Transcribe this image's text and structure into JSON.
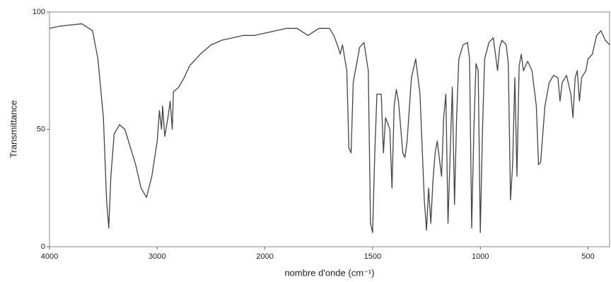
{
  "chart_data": {
    "type": "line",
    "y_label": "Transmittance",
    "x_label": "nombre d'onde (cm⁻¹)",
    "color": "#444444",
    "xlim": [
      4000,
      400
    ],
    "xticks": [
      4000,
      3000,
      2000,
      1500,
      1000,
      500
    ],
    "x_scale_break": 2000,
    "ylim": [
      0,
      100
    ],
    "yticks": [
      0,
      50,
      100
    ],
    "x": [
      4000,
      3900,
      3700,
      3600,
      3550,
      3500,
      3470,
      3450,
      3430,
      3400,
      3350,
      3300,
      3200,
      3150,
      3100,
      3050,
      3000,
      2980,
      2960,
      2950,
      2930,
      2900,
      2880,
      2860,
      2850,
      2800,
      2750,
      2700,
      2600,
      2500,
      2400,
      2300,
      2200,
      2100,
      2000,
      1950,
      1900,
      1850,
      1800,
      1750,
      1700,
      1680,
      1660,
      1650,
      1640,
      1620,
      1610,
      1600,
      1590,
      1560,
      1540,
      1520,
      1510,
      1500,
      1490,
      1480,
      1460,
      1450,
      1440,
      1420,
      1410,
      1400,
      1390,
      1380,
      1360,
      1350,
      1340,
      1320,
      1300,
      1280,
      1260,
      1250,
      1240,
      1230,
      1220,
      1210,
      1200,
      1180,
      1170,
      1160,
      1150,
      1140,
      1130,
      1120,
      1110,
      1100,
      1080,
      1060,
      1050,
      1040,
      1030,
      1020,
      1010,
      1000,
      990,
      980,
      960,
      940,
      930,
      920,
      910,
      900,
      880,
      870,
      860,
      850,
      840,
      830,
      820,
      810,
      800,
      780,
      760,
      740,
      730,
      720,
      700,
      680,
      660,
      640,
      630,
      620,
      600,
      580,
      570,
      560,
      550,
      540,
      530,
      510,
      500,
      480,
      460,
      440,
      420,
      400
    ],
    "values": [
      93,
      94,
      95,
      92,
      80,
      55,
      20,
      8,
      30,
      48,
      52,
      50,
      35,
      25,
      21,
      30,
      45,
      58,
      50,
      60,
      47,
      55,
      62,
      50,
      66,
      68,
      72,
      77,
      82,
      86,
      88,
      89,
      90,
      90,
      91,
      92,
      93,
      93,
      90,
      93,
      93,
      90,
      85,
      82,
      86,
      75,
      42,
      40,
      70,
      85,
      87,
      75,
      10,
      6,
      40,
      65,
      65,
      40,
      55,
      50,
      25,
      60,
      67,
      62,
      40,
      38,
      45,
      72,
      80,
      65,
      20,
      7,
      25,
      10,
      28,
      40,
      45,
      30,
      55,
      65,
      10,
      40,
      68,
      18,
      55,
      80,
      86,
      87,
      80,
      8,
      50,
      78,
      75,
      6,
      50,
      80,
      87,
      89,
      82,
      75,
      85,
      88,
      86,
      78,
      20,
      35,
      72,
      30,
      77,
      82,
      75,
      79,
      75,
      60,
      35,
      36,
      60,
      70,
      73,
      72,
      62,
      70,
      73,
      65,
      55,
      72,
      75,
      62,
      72,
      75,
      80,
      82,
      90,
      92,
      88,
      86
    ]
  }
}
